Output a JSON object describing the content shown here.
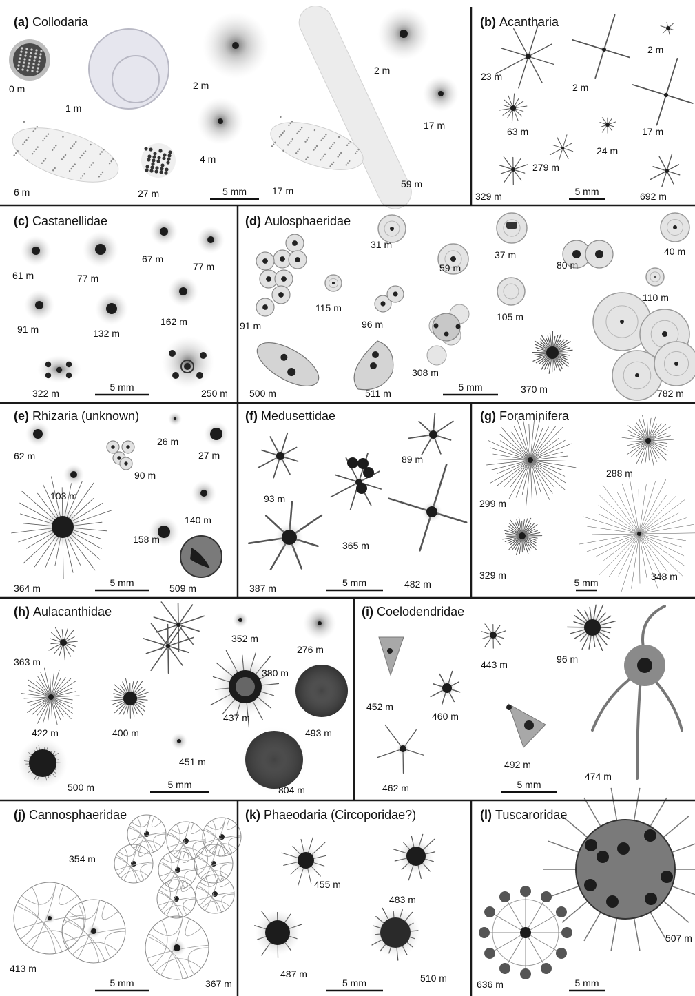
{
  "colors": {
    "ink": "#111111",
    "organism": "#3a3a3a",
    "halo": "#9a9a9a",
    "background": "#ffffff"
  },
  "panels": [
    {
      "letter": "(a)",
      "name": "Collodaria",
      "scale": "5 mm",
      "specimens": [
        "0 m",
        "1 m",
        "6 m",
        "27 m",
        "2 m",
        "4 m",
        "17 m",
        "2 m",
        "17 m",
        "59 m"
      ]
    },
    {
      "letter": "(b)",
      "name": "Acantharia",
      "scale": "5 mm",
      "specimens": [
        "23 m",
        "2 m",
        "2 m",
        "63 m",
        "17 m",
        "24 m",
        "279 m",
        "329 m",
        "692 m"
      ]
    },
    {
      "letter": "(c)",
      "name": "Castanellidae",
      "scale": "5 mm",
      "specimens": [
        "61 m",
        "77 m",
        "67 m",
        "77 m",
        "91 m",
        "132 m",
        "162 m",
        "322 m",
        "250 m"
      ]
    },
    {
      "letter": "(d)",
      "name": "Aulosphaeridae",
      "scale": "5 mm",
      "specimens": [
        "91 m",
        "115 m",
        "31 m",
        "96 m",
        "59 m",
        "37 m",
        "80 m",
        "40 m",
        "105 m",
        "110 m",
        "308 m",
        "500 m",
        "511 m",
        "370 m",
        "782 m"
      ]
    },
    {
      "letter": "(e)",
      "name": "Rhizaria (unknown)",
      "scale": "5 mm",
      "specimens": [
        "26 m",
        "27 m",
        "62 m",
        "90 m",
        "103 m",
        "140 m",
        "158 m",
        "364 m",
        "509 m"
      ]
    },
    {
      "letter": "(f)",
      "name": "Medusettidae",
      "scale": "5 mm",
      "specimens": [
        "89 m",
        "93 m",
        "365 m",
        "387 m",
        "482 m"
      ]
    },
    {
      "letter": "(g)",
      "name": "Foraminifera",
      "scale": "5 mm",
      "specimens": [
        "288 m",
        "299 m",
        "329 m",
        "348 m"
      ]
    },
    {
      "letter": "(h)",
      "name": "Aulacanthidae",
      "scale": "5 mm",
      "specimens": [
        "363 m",
        "380 m",
        "352 m",
        "276 m",
        "422 m",
        "400 m",
        "437 m",
        "493 m",
        "451 m",
        "500 m",
        "804 m"
      ]
    },
    {
      "letter": "(i)",
      "name": "Coelodendridae",
      "scale": "5 mm",
      "specimens": [
        "452 m",
        "443 m",
        "96 m",
        "460 m",
        "492 m",
        "462 m",
        "474 m"
      ]
    },
    {
      "letter": "(j)",
      "name": "Cannosphaeridae",
      "scale": "5 mm",
      "specimens": [
        "354 m",
        "413 m",
        "367 m"
      ]
    },
    {
      "letter": "(k)",
      "name": "Phaeodaria (Circoporidae?)",
      "scale": "5 mm",
      "specimens": [
        "455 m",
        "483 m",
        "487 m",
        "510 m"
      ]
    },
    {
      "letter": "(l)",
      "name": "Tuscaroridae",
      "scale": "5 mm",
      "specimens": [
        "507 m",
        "636 m"
      ]
    }
  ]
}
